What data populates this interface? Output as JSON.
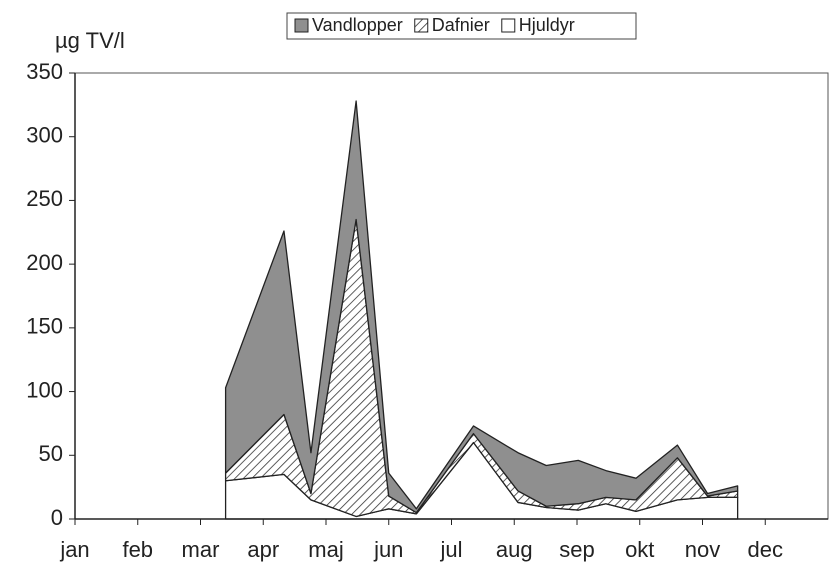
{
  "chart_data": {
    "type": "stacked-area",
    "y_label": "µg TV/l",
    "x": [
      2.4,
      3.33,
      3.76,
      4.48,
      5.0,
      5.44,
      6.35,
      7.06,
      7.51,
      8.02,
      8.46,
      8.94,
      9.6,
      10.08,
      10.56
    ],
    "series": [
      {
        "name": "Hjuldyr",
        "color": "#ffffff",
        "values": [
          30,
          35,
          15,
          2,
          8,
          4,
          60,
          13,
          9,
          7,
          12,
          6,
          15,
          17,
          17
        ]
      },
      {
        "name": "Dafnier",
        "color": "#ffffff",
        "pattern": "hatch",
        "values": [
          6,
          47,
          5,
          233,
          10,
          1,
          7,
          9,
          1,
          5,
          5,
          9,
          33,
          1,
          5
        ]
      },
      {
        "name": "Vandlopper",
        "color": "#8f8f8f",
        "values": [
          67,
          144,
          32,
          93,
          18,
          3,
          6,
          30,
          32,
          34,
          21,
          17,
          10,
          2,
          4
        ]
      }
    ],
    "legend_order": [
      "Vandlopper",
      "Dafnier",
      "Hjuldyr"
    ],
    "xlim": [
      0,
      12
    ],
    "xticks": [
      {
        "value": 0,
        "label": "jan"
      },
      {
        "value": 1,
        "label": "feb"
      },
      {
        "value": 2,
        "label": "mar"
      },
      {
        "value": 3,
        "label": "apr"
      },
      {
        "value": 4,
        "label": "maj"
      },
      {
        "value": 5,
        "label": "jun"
      },
      {
        "value": 6,
        "label": "jul"
      },
      {
        "value": 7,
        "label": "aug"
      },
      {
        "value": 8,
        "label": "sep"
      },
      {
        "value": 9,
        "label": "okt"
      },
      {
        "value": 10,
        "label": "nov"
      },
      {
        "value": 11,
        "label": "dec"
      }
    ],
    "ylim": [
      0,
      350
    ],
    "yticks": [
      0,
      50,
      100,
      150,
      200,
      250,
      300,
      350
    ],
    "grid": false
  }
}
